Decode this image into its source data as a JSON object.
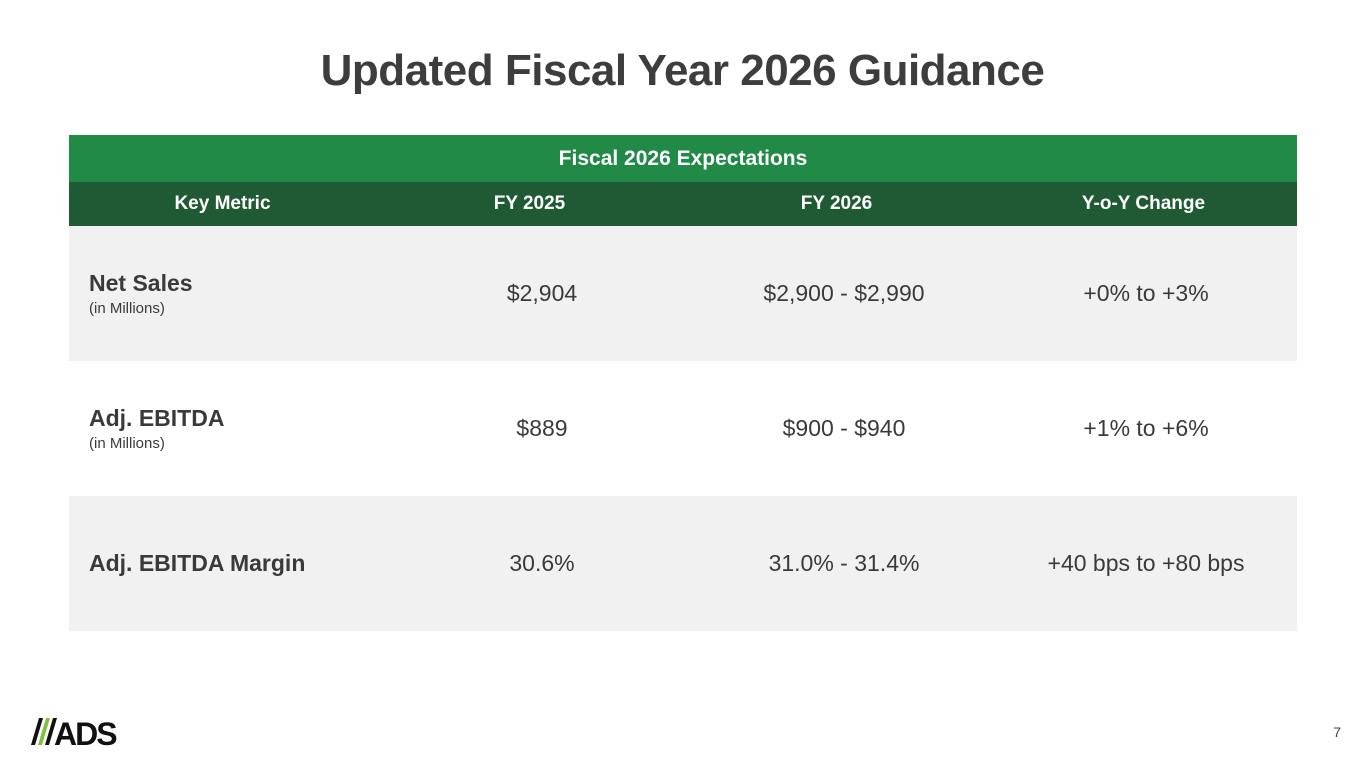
{
  "title": "Updated Fiscal Year 2026 Guidance",
  "table": {
    "caption": "Fiscal 2026 Expectations",
    "headers": [
      "Key Metric",
      "FY 2025",
      "FY 2026",
      "Y-o-Y Change"
    ],
    "rows": [
      {
        "metric": "Net Sales",
        "unit": "(in Millions)",
        "fy2025": "$2,904",
        "fy2026": "$2,900 - $2,990",
        "yoy": "+0% to +3%"
      },
      {
        "metric": "Adj. EBITDA",
        "unit": "(in Millions)",
        "fy2025": "$889",
        "fy2026": "$900 - $940",
        "yoy": "+1% to +6%"
      },
      {
        "metric": "Adj. EBITDA Margin",
        "fy2025": "30.6%",
        "fy2026": "31.0% - 31.4%",
        "yoy": "+40 bps to +80 bps"
      }
    ]
  },
  "logo": "ADS",
  "page_number": "7",
  "colors": {
    "caption_bg": "#218a47",
    "header_bg": "#205a35",
    "row_alt_bg": "#f1f1f2",
    "logo_green": "#7dc242"
  }
}
